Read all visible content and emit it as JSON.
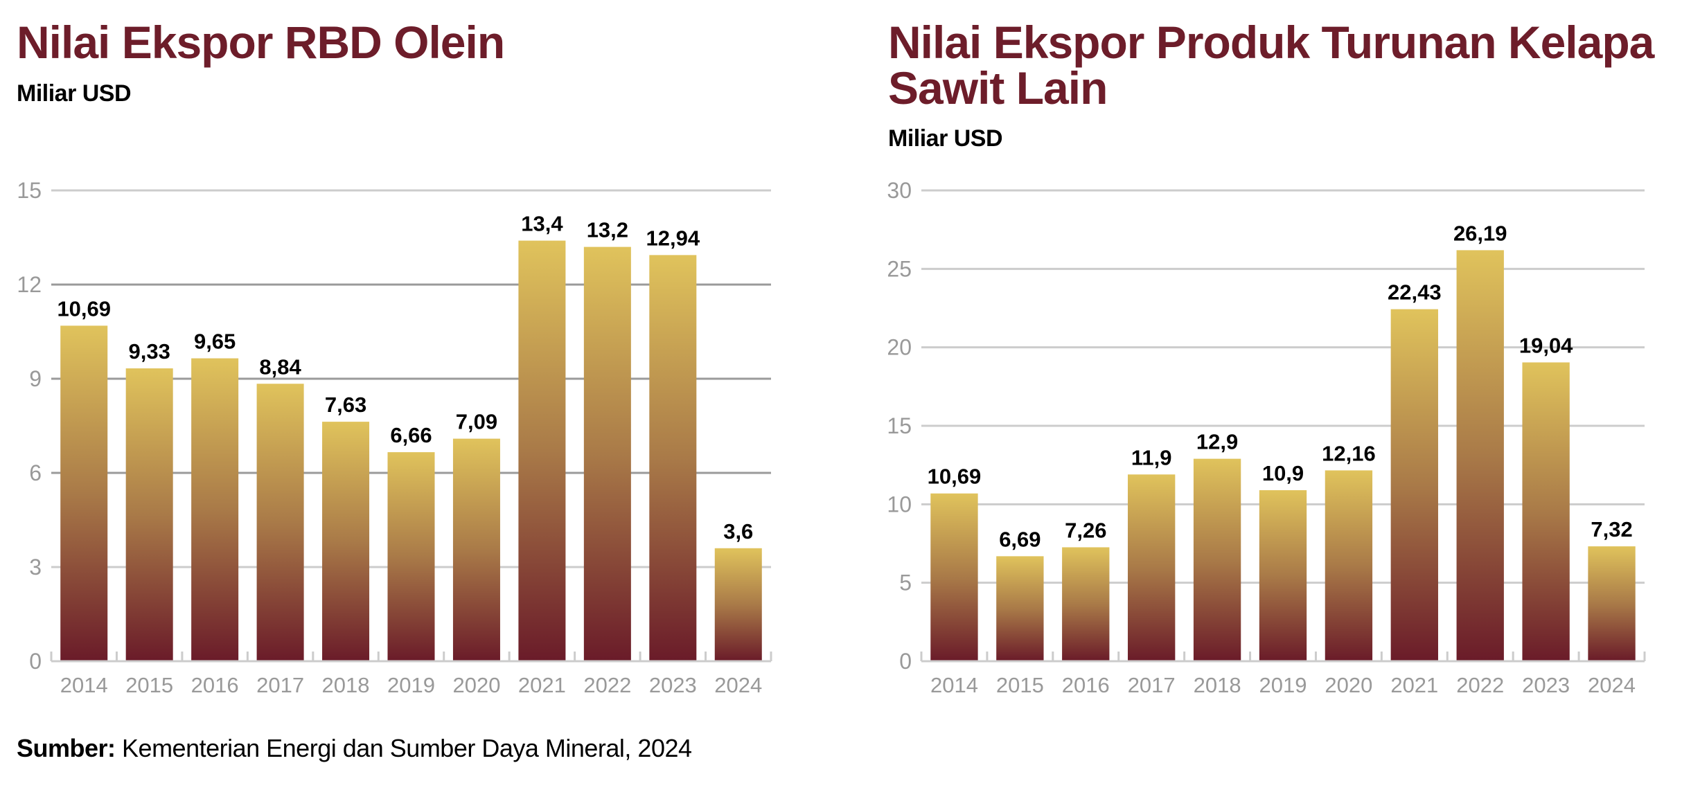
{
  "chart_data": [
    {
      "type": "bar",
      "title": "Nilai Ekspor RBD Olein",
      "subtitle": "Miliar USD",
      "xlabel": "",
      "ylabel": "Miliar USD",
      "categories": [
        "2014",
        "2015",
        "2016",
        "2017",
        "2018",
        "2019",
        "2020",
        "2021",
        "2022",
        "2023",
        "2024"
      ],
      "values": [
        10.69,
        9.33,
        9.65,
        8.84,
        7.63,
        6.66,
        7.09,
        13.4,
        13.2,
        12.94,
        3.6
      ],
      "value_labels": [
        "10,69",
        "9,33",
        "9,65",
        "8,84",
        "7,63",
        "6,66",
        "7,09",
        "13,4",
        "13,2",
        "12,94",
        "3,6"
      ],
      "ylim": [
        0,
        15
      ],
      "yticks": [
        0,
        3,
        6,
        9,
        12,
        15
      ],
      "ytick_labels": [
        "0",
        "3",
        "6",
        "9",
        "12",
        "15"
      ],
      "grid": true,
      "legend": "none"
    },
    {
      "type": "bar",
      "title": "Nilai Ekspor Produk Turunan Kelapa Sawit Lain",
      "subtitle": "Miliar USD",
      "xlabel": "",
      "ylabel": "Miliar USD",
      "categories": [
        "2014",
        "2015",
        "2016",
        "2017",
        "2018",
        "2019",
        "2020",
        "2021",
        "2022",
        "2023",
        "2024"
      ],
      "values": [
        10.69,
        6.69,
        7.26,
        11.9,
        12.9,
        10.9,
        12.16,
        22.43,
        26.19,
        19.04,
        7.32
      ],
      "value_labels": [
        "10,69",
        "6,69",
        "7,26",
        "11,9",
        "12,9",
        "10,9",
        "12,16",
        "22,43",
        "26,19",
        "19,04",
        "7,32"
      ],
      "ylim": [
        0,
        30
      ],
      "yticks": [
        0,
        5,
        10,
        15,
        20,
        25,
        30
      ],
      "ytick_labels": [
        "0",
        "5",
        "10",
        "15",
        "20",
        "25",
        "30"
      ],
      "grid": true,
      "legend": "none"
    }
  ],
  "source": {
    "label": "Sumber:",
    "text": " Kementerian Energi dan Sumber Daya Mineral, 2024"
  },
  "colors": {
    "title": "#6d1d2a",
    "bar_top": "#e0c35c",
    "bar_mid": "#a97a48",
    "bar_bottom": "#6a1b29",
    "grid_light": "#cccccc",
    "grid_dark": "#9a9a9a",
    "tick_label": "#999999",
    "value_label": "#000000"
  }
}
